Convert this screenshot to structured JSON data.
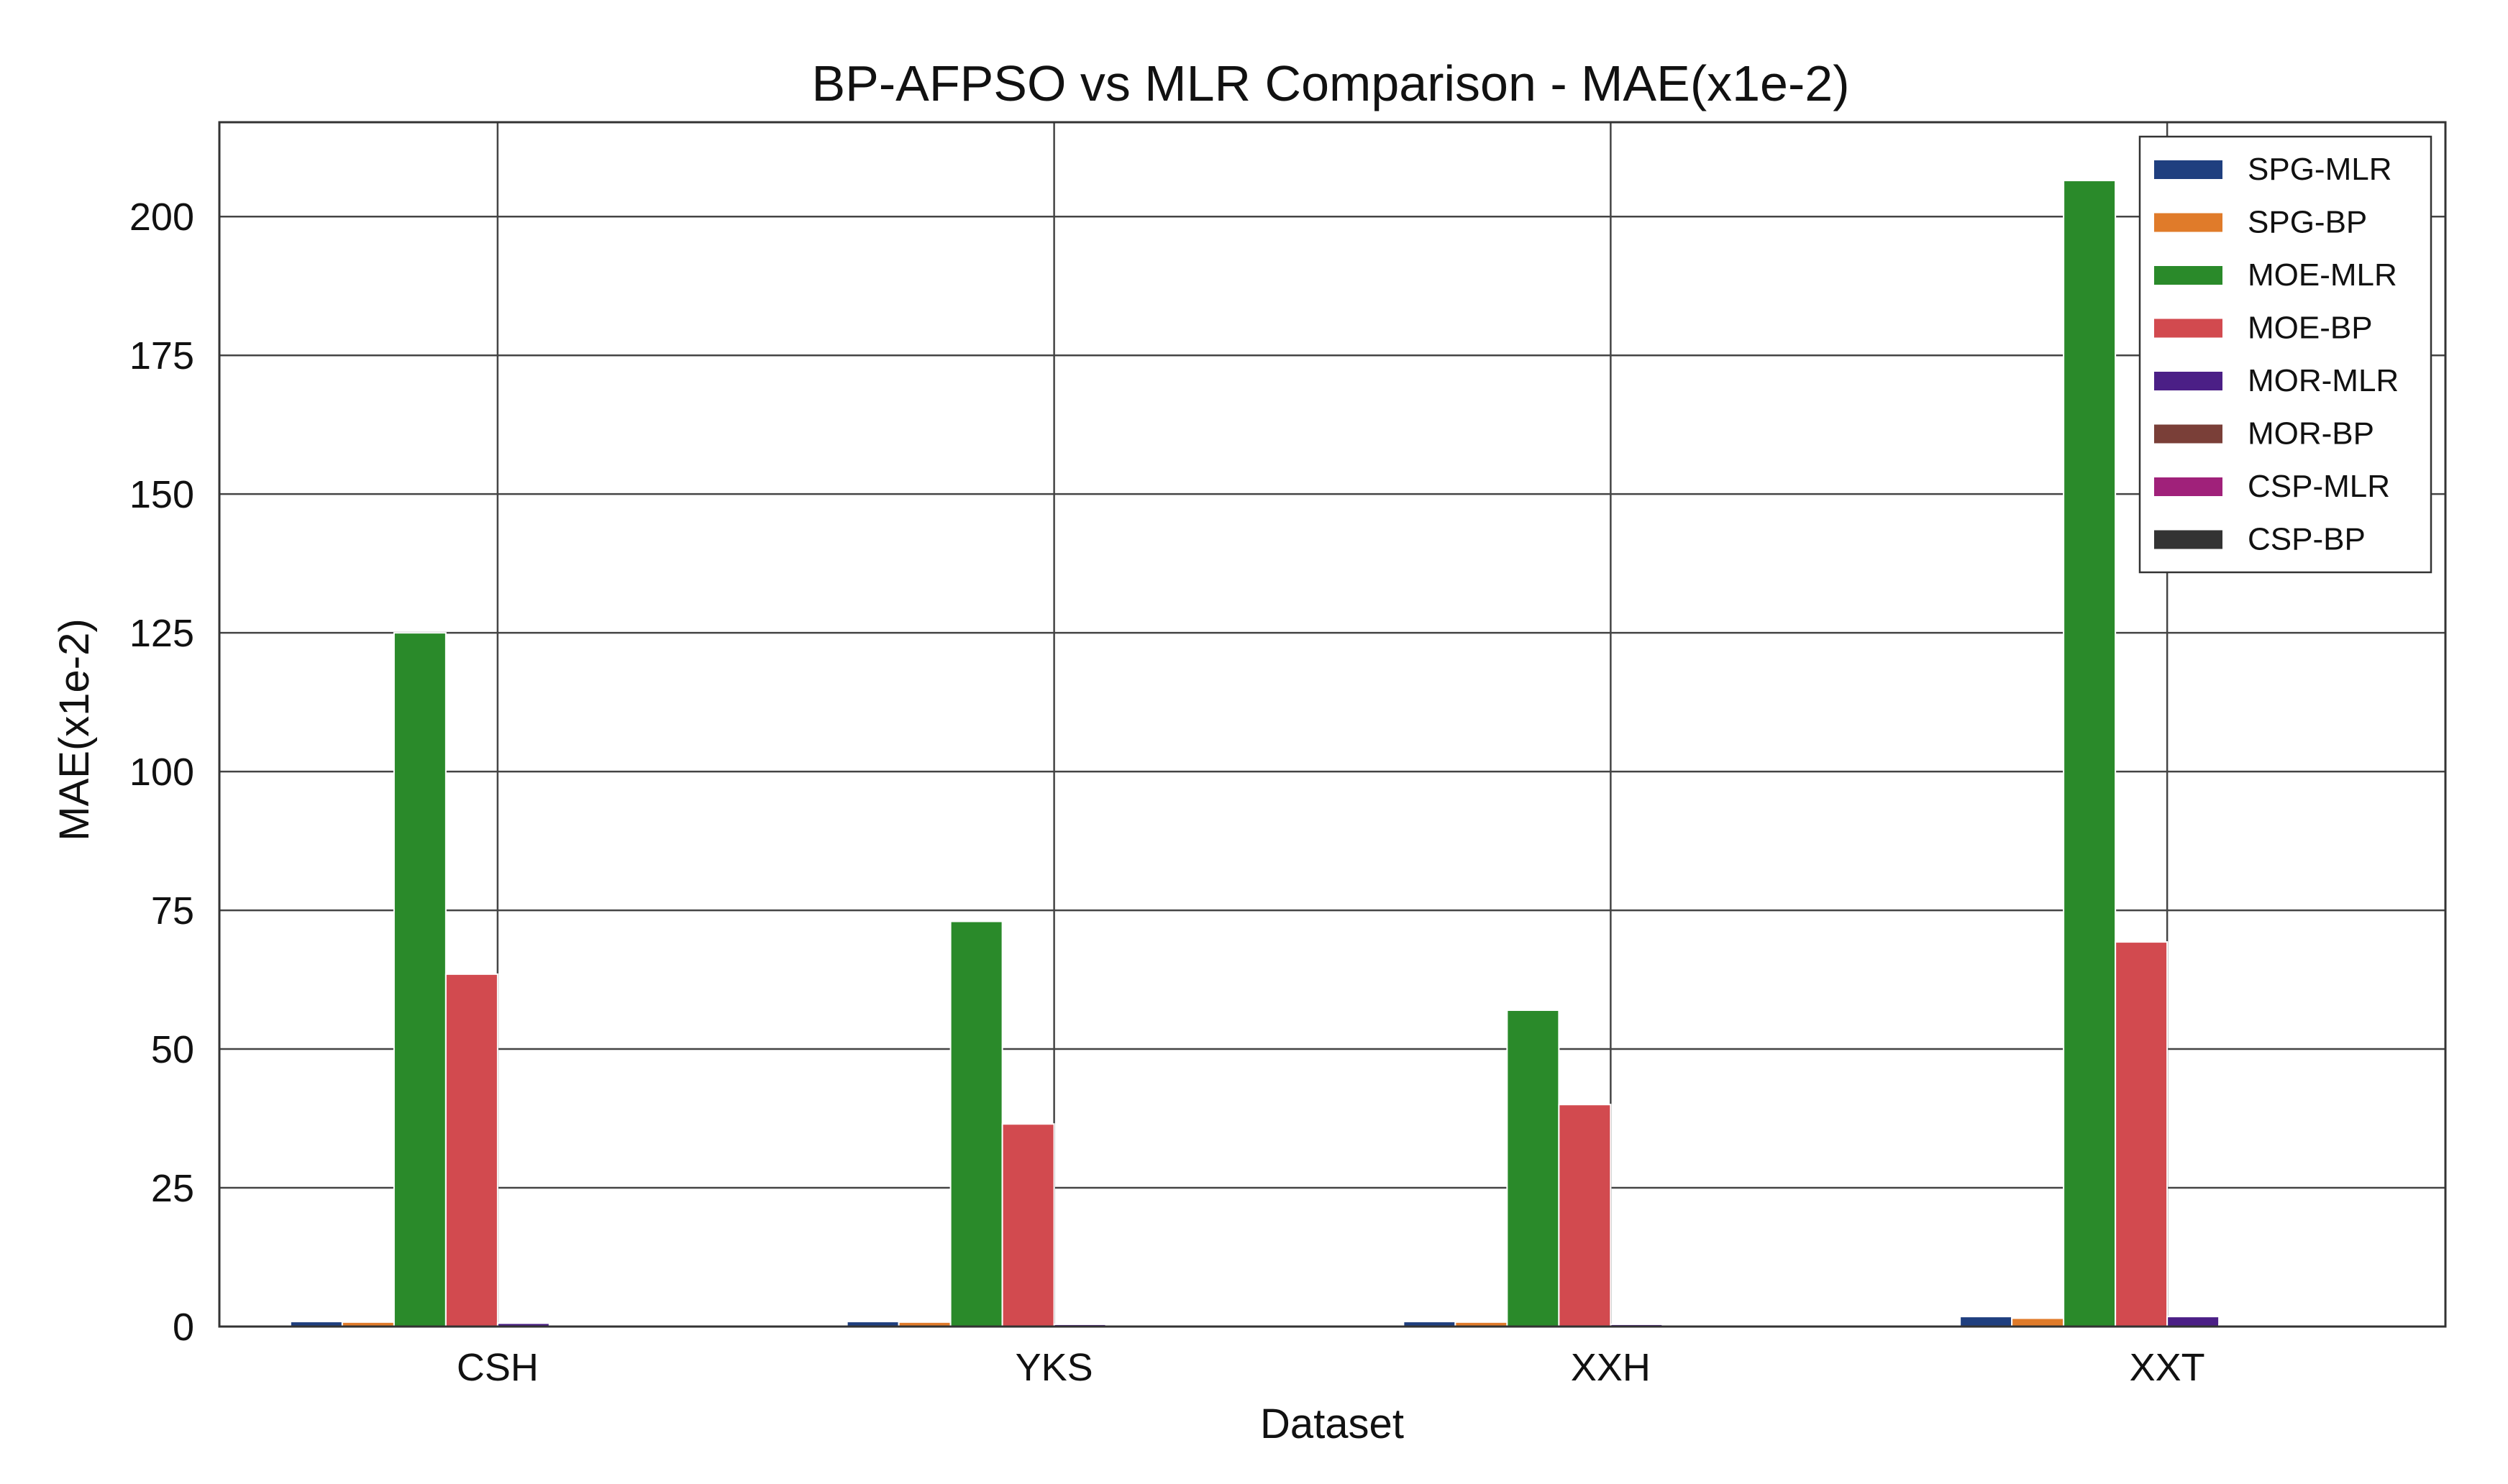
{
  "chart_data": {
    "type": "bar",
    "title": "BP-AFPSO vs MLR Comparison - MAE(x1e-2)",
    "xlabel": "Dataset",
    "ylabel": "MAE(x1e-2)",
    "ylim": [
      0,
      217
    ],
    "yticks": [
      0,
      25,
      50,
      75,
      100,
      125,
      150,
      175,
      200
    ],
    "grid": true,
    "legend_position": "top-right",
    "categories": [
      "CSH",
      "YKS",
      "XXH",
      "XXT"
    ],
    "series": [
      {
        "name": "SPG-MLR",
        "color": "#1f3f7f",
        "values": [
          0.9,
          0.9,
          0.9,
          1.8
        ]
      },
      {
        "name": "SPG-BP",
        "color": "#e07b2a",
        "values": [
          0.8,
          0.8,
          0.8,
          1.5
        ]
      },
      {
        "name": "MOE-MLR",
        "color": "#2a8a2a",
        "values": [
          125.0,
          73.0,
          57.0,
          206.5
        ]
      },
      {
        "name": "MOE-BP",
        "color": "#d24a4f",
        "values": [
          63.5,
          36.5,
          40.0,
          69.3
        ]
      },
      {
        "name": "MOR-MLR",
        "color": "#4b1f86",
        "values": [
          0.6,
          0.4,
          0.4,
          1.8
        ]
      },
      {
        "name": "MOR-BP",
        "color": "#7a3f38",
        "values": [
          0.3,
          0.2,
          0.2,
          0.3
        ]
      },
      {
        "name": "CSP-MLR",
        "color": "#a0217a",
        "values": [
          0.2,
          0.2,
          0.2,
          0.2
        ]
      },
      {
        "name": "CSP-BP",
        "color": "#333333",
        "values": [
          0.1,
          0.1,
          0.1,
          0.1
        ]
      }
    ]
  }
}
